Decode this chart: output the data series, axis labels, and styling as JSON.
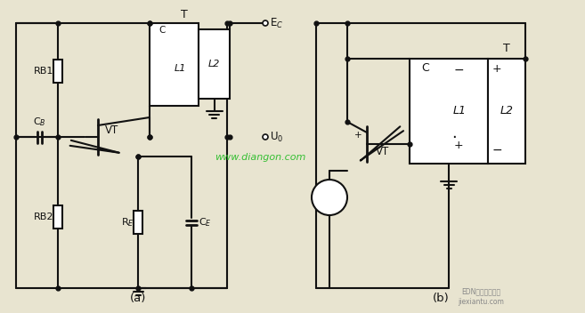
{
  "bg_color": "#e8e4d0",
  "lc": "#111111",
  "green": "#22bb22",
  "watermark": "www.diangon.com",
  "la": "(a)",
  "lb": "(b)",
  "EC": "E$_C$",
  "U0": "U$_0$",
  "Ta": "T",
  "Tb": "T",
  "Ca": "C",
  "Cb": "C",
  "L1a": "L1",
  "L2a": "L2",
  "L1b": "L1",
  "L2b": "L2",
  "RB1": "RB1",
  "RB2": "RB2",
  "CB": "C$_B$",
  "VTa": "VT",
  "VTb": "VT",
  "RE": "R$_E$",
  "CE": "C$_E$"
}
